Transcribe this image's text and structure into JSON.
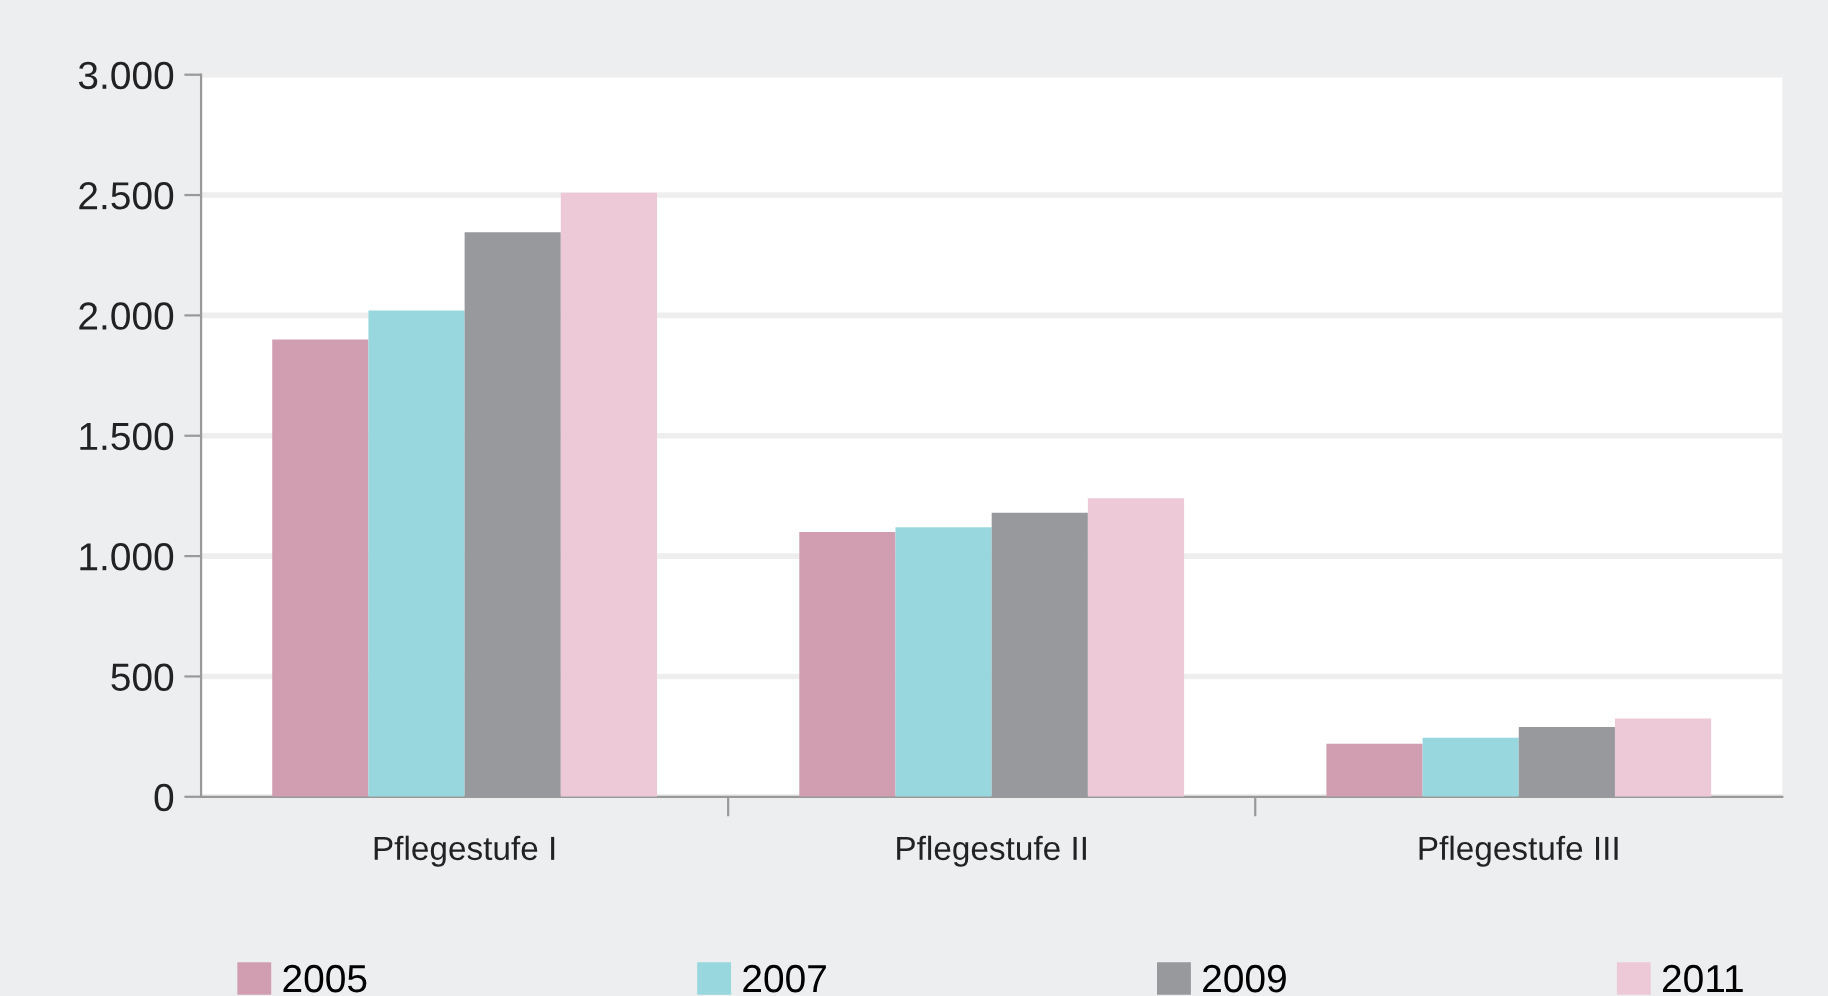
{
  "chart_data": {
    "type": "bar",
    "categories": [
      "Pflegestufe I",
      "Pflegestufe II",
      "Pflegestufe III"
    ],
    "series": [
      {
        "name": "2005",
        "color": "#d09eb0",
        "values": [
          1900,
          1100,
          220
        ]
      },
      {
        "name": "2007",
        "color": "#98d7de",
        "values": [
          2020,
          1120,
          245
        ]
      },
      {
        "name": "2009",
        "color": "#98999d",
        "values": [
          2345,
          1180,
          290
        ]
      },
      {
        "name": "2011",
        "color": "#edc9d8",
        "values": [
          2510,
          1240,
          325
        ]
      }
    ],
    "ylim": [
      0,
      3000
    ],
    "yticks": [
      {
        "value": 0,
        "label": "0"
      },
      {
        "value": 500,
        "label": "500"
      },
      {
        "value": 1000,
        "label": "1.000"
      },
      {
        "value": 1500,
        "label": "1.500"
      },
      {
        "value": 2000,
        "label": "2.000"
      },
      {
        "value": 2500,
        "label": "2.500"
      },
      {
        "value": 3000,
        "label": "3.000"
      }
    ],
    "grid": "y",
    "legend": "bottom"
  }
}
